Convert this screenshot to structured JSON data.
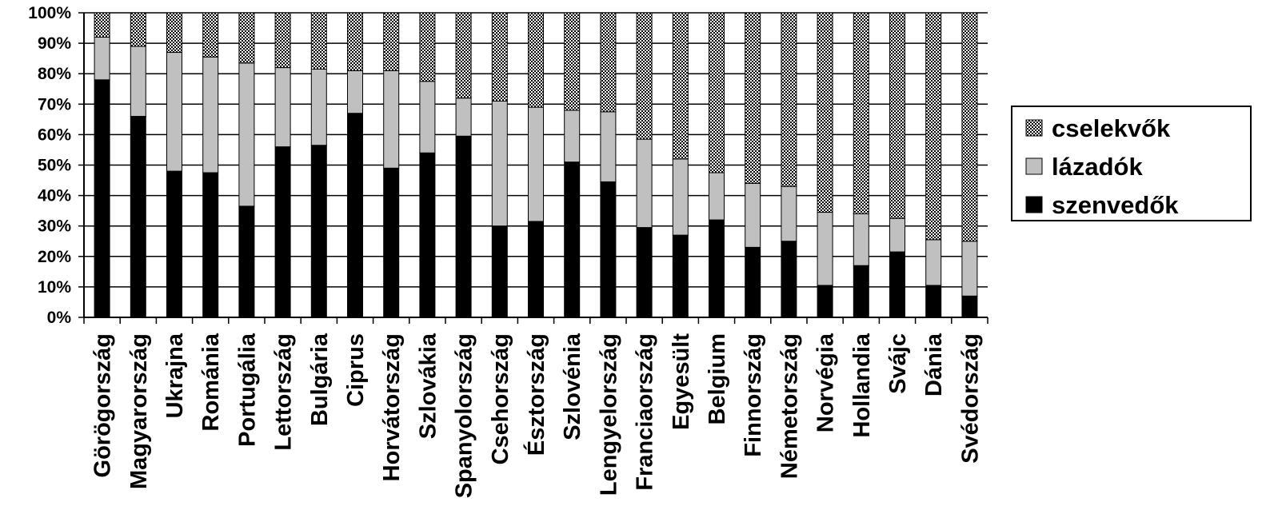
{
  "chart_data": {
    "type": "bar",
    "stacked": true,
    "ylim": [
      0,
      100
    ],
    "y_ticks": [
      "0%",
      "10%",
      "20%",
      "30%",
      "40%",
      "50%",
      "60%",
      "70%",
      "80%",
      "90%",
      "100%"
    ],
    "grid": true,
    "legend_position": "right",
    "categories": [
      "Görögország",
      "Magyarország",
      "Ukrajna",
      "Románia",
      "Portugália",
      "Lettország",
      "Bulgária",
      "Ciprus",
      "Horvátország",
      "Szlovákia",
      "Spanyolország",
      "Csehország",
      "Észtország",
      "Szlovénia",
      "Lengyelország",
      "Franciaország",
      "Egyesült",
      "Belgium",
      "Finnország",
      "Németország",
      "Norvégia",
      "Hollandia",
      "Svájc",
      "Dánia",
      "Svédország"
    ],
    "series": [
      {
        "name": "szenvedők",
        "color": "#000000",
        "pattern": "solid",
        "values": [
          78,
          66,
          48,
          47.5,
          36.5,
          56,
          56.5,
          67,
          49,
          54,
          59.5,
          30,
          31.5,
          51,
          44.5,
          29.5,
          27,
          32,
          23,
          25,
          10.5,
          17,
          21.5,
          10.5,
          7
        ]
      },
      {
        "name": "lázadók",
        "color": "#c0c0c0",
        "pattern": "solid",
        "values": [
          14,
          23,
          39,
          38,
          47,
          26,
          25,
          14,
          32,
          23.5,
          12.5,
          41,
          37.5,
          17,
          23,
          29,
          25,
          15.5,
          21,
          18,
          24,
          17,
          11,
          15,
          18
        ]
      },
      {
        "name": "cselekvők",
        "color": "#909090",
        "pattern": "checker",
        "values": [
          8,
          11,
          13,
          14.5,
          16.5,
          18,
          18.5,
          19,
          19,
          22.5,
          28,
          29,
          31,
          32,
          32.5,
          41.5,
          48,
          52.5,
          56,
          57,
          65.5,
          66,
          67.5,
          74.5,
          75
        ]
      }
    ],
    "legend_order": [
      "cselekvők",
      "lázadók",
      "szenvedők"
    ]
  }
}
